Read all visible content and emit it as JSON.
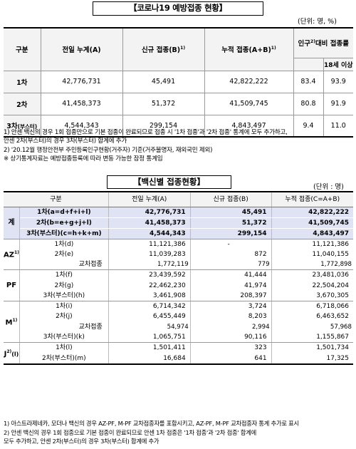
{
  "title1": "【코로나19 예방접종 현황】",
  "unit1": "(단위: 명, %)",
  "t1": {
    "headers": {
      "category": "구분",
      "prev": "전일 누계(A)",
      "new": "신규 접종(B)",
      "new_sup": "1)",
      "cum": "누적 접종(A+B)",
      "cum_sup": "1)",
      "pop": "인구",
      "pop_sup": "2)",
      "pop_rest": "대비 접종률",
      "adult": "18세 이상"
    },
    "rows": [
      {
        "label": "1차",
        "prev": "42,776,731",
        "new": "45,491",
        "cum": "42,822,222",
        "rate": "83.4",
        "adult": "93.9"
      },
      {
        "label": "2차",
        "prev": "41,458,373",
        "new": "51,372",
        "cum": "41,509,745",
        "rate": "80.8",
        "adult": "91.9"
      },
      {
        "label": "3차",
        "label_suffix": "(부스터)",
        "prev": "4,544,343",
        "new": "299,154",
        "cum": "4,843,497",
        "rate": "9.4",
        "adult": "11.0"
      }
    ]
  },
  "notes1": [
    "1)  안센 백신의 경우 1회 접종만으로 기본 접종이 완료되므로 접종 시 '1차 접종'과 '2차 접종' 통계에 모두 추가하고,",
    "     안센 2차(부스터)의 경우 3차(부스터) 합계에 추가",
    "2)  '20.12월 행정안전부 주민등록인구현황(거주자) 기준(거주불명자, 재외국민 제외)",
    "※ 상기통계자료는 예방접종등록에 따라 변동 가능한 잠정 통계임"
  ],
  "title2": "【백신별 접종현황】",
  "unit2": "(단위 : 명)",
  "t2": {
    "headers": {
      "category": "구분",
      "prev": "전일 누계(A)",
      "new": "신규 접종(B)",
      "cum": "누적 접종(C=A+B)"
    },
    "groups": [
      {
        "name": "계",
        "sup": "",
        "rows": [
          {
            "label": "1차(a=d+f+i+l)",
            "prev": "42,776,731",
            "new": "45,491",
            "cum": "42,822,222"
          },
          {
            "label": "2차(b=e+g+j+l)",
            "prev": "41,458,373",
            "new": "51,372",
            "cum": "41,509,745"
          },
          {
            "label": "3차(부스터)(c=h+k+m)",
            "prev": "4,544,343",
            "new": "299,154",
            "cum": "4,843,497"
          }
        ]
      },
      {
        "name": "AZ",
        "sup": "1)",
        "rows": [
          {
            "label": "1차(d)",
            "prev": "11,121,386",
            "new": "-",
            "cum": "11,121,386"
          },
          {
            "label": "2차(e)",
            "prev": "11,039,283",
            "new": "872",
            "cum": "11,040,155"
          },
          {
            "label": "교차접종",
            "prev": "1,772,119",
            "new": "779",
            "cum": "1,772,898",
            "cross": true
          }
        ]
      },
      {
        "name": "PF",
        "sup": "",
        "rows": [
          {
            "label": "1차(f)",
            "prev": "23,439,592",
            "new": "41,444",
            "cum": "23,481,036"
          },
          {
            "label": "2차(g)",
            "prev": "22,462,230",
            "new": "41,974",
            "cum": "22,504,204"
          },
          {
            "label": "3차(부스터)(h)",
            "prev": "3,461,908",
            "new": "208,397",
            "cum": "3,670,305"
          }
        ]
      },
      {
        "name": "M",
        "sup": "1)",
        "rows": [
          {
            "label": "1차(i)",
            "prev": "6,714,342",
            "new": "3,724",
            "cum": "6,718,066"
          },
          {
            "label": "2차(j)",
            "prev": "6,455,449",
            "new": "8,203",
            "cum": "6,463,652"
          },
          {
            "label": "교차접종",
            "prev": "54,974",
            "new": "2,994",
            "cum": "57,968",
            "cross": true
          },
          {
            "label": "3차(부스터)(k)",
            "prev": "1,065,751",
            "new": "90,116",
            "cum": "1,155,867"
          }
        ]
      },
      {
        "name": "J",
        "sup": "2)",
        "name_suffix": "(l)",
        "rows": [
          {
            "label": "1차(l)",
            "prev": "1,501,411",
            "new": "323",
            "cum": "1,501,734"
          },
          {
            "label": "2차(부스터)(m)",
            "prev": "16,684",
            "new": "641",
            "cum": "17,325"
          }
        ]
      }
    ]
  },
  "notes2": [
    "1)  아스트라제네카, 모더나 백신의 경우 AZ-PF, M-PF 교차접종자를 포함시키고, AZ-PF, M-PF 교차접종자 통계 추가로 표시",
    "2)  안센 백신의 경우 1회 접종으로 기본 접종이 완료되므로 안센 1차 접종은 '1차 접종'과 '2차 접종' 합계에",
    "     모두 추가하고, 안센 2차(부스터)의 경우 3차(부스터) 합계에 추가"
  ]
}
